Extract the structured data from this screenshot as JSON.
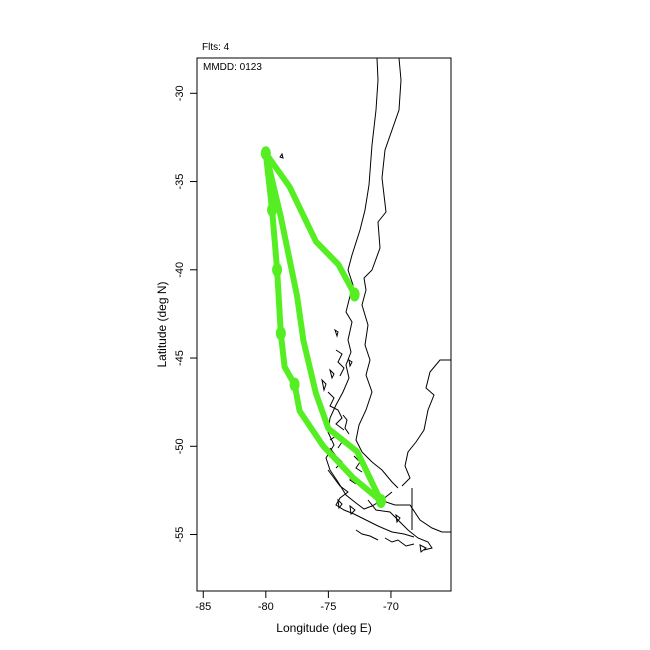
{
  "header": {
    "flights_label": "Flts: 4",
    "date_label": "MMDD: 0123"
  },
  "chart_data": {
    "type": "map",
    "xlabel": "Longitude (deg E)",
    "ylabel": "Latitude (deg N)",
    "xlim": [
      -85.5,
      -65.2
    ],
    "ylim": [
      -58.2,
      -28.0
    ],
    "xticks": [
      -85,
      -80,
      -75,
      -70
    ],
    "xtick_labels": [
      "-85",
      "-80",
      "-75",
      "-70"
    ],
    "yticks": [
      -30,
      -35,
      -40,
      -45,
      -50,
      -55
    ],
    "ytick_labels": [
      "-30",
      "-35",
      "-40",
      "-45",
      "-50",
      "-55"
    ],
    "grid": false,
    "track_color": "#55ee22",
    "coast_color": "#000000",
    "flight_track": [
      [
        -80.0,
        -33.4
      ],
      [
        -79.5,
        -36.6
      ],
      [
        -79.1,
        -40.0
      ],
      [
        -78.8,
        -43.6
      ],
      [
        -78.5,
        -45.5
      ],
      [
        -77.7,
        -46.5
      ],
      [
        -77.3,
        -48.0
      ],
      [
        -75.4,
        -50.0
      ],
      [
        -73.0,
        -51.8
      ],
      [
        -70.8,
        -53.1
      ],
      [
        -72.7,
        -50.3
      ],
      [
        -75.0,
        -49.0
      ],
      [
        -76.0,
        -47.0
      ],
      [
        -77.0,
        -44.0
      ],
      [
        -77.5,
        -41.5
      ],
      [
        -78.8,
        -37.0
      ],
      [
        -80.0,
        -33.4
      ]
    ],
    "flight_track_2": [
      [
        -80.0,
        -33.4
      ],
      [
        -78.1,
        -35.3
      ],
      [
        -76.0,
        -38.4
      ],
      [
        -74.2,
        -39.7
      ],
      [
        -72.9,
        -41.4
      ]
    ],
    "markers": [
      [
        -80.0,
        -33.4
      ],
      [
        -79.5,
        -36.6
      ],
      [
        -79.1,
        -40.0
      ],
      [
        -78.8,
        -43.6
      ],
      [
        -77.7,
        -46.5
      ],
      [
        -72.9,
        -41.4
      ],
      [
        -70.8,
        -53.1
      ]
    ]
  }
}
